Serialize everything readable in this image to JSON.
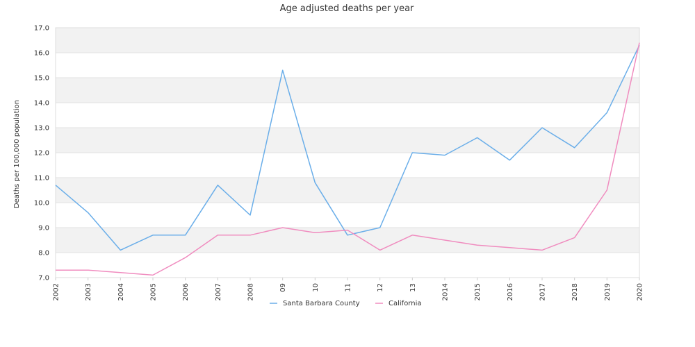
{
  "chart_data": {
    "type": "line",
    "title": "Age adjusted deaths per year",
    "xlabel": "",
    "ylabel": "Deaths per 100,000 population",
    "ylim": [
      7.0,
      17.0
    ],
    "yticks": [
      "7.0",
      "8.0",
      "9.0",
      "10.0",
      "11.0",
      "12.0",
      "13.0",
      "14.0",
      "15.0",
      "16.0",
      "17.0"
    ],
    "categories": [
      "2002",
      "2003",
      "2004",
      "2005",
      "2006",
      "2007",
      "2008",
      "09",
      "10",
      "11",
      "12",
      "13",
      "2014",
      "2015",
      "2016",
      "2017",
      "2018",
      "2019",
      "2020"
    ],
    "series": [
      {
        "name": "Santa Barbara County",
        "color": "#6aaee9",
        "values": [
          10.7,
          9.6,
          8.1,
          8.7,
          8.7,
          10.7,
          9.5,
          15.3,
          10.8,
          8.7,
          9.0,
          12.0,
          11.9,
          12.6,
          11.7,
          13.0,
          12.2,
          13.6,
          16.3
        ]
      },
      {
        "name": "California",
        "color": "#f08cbf",
        "values": [
          7.3,
          7.3,
          7.2,
          7.1,
          7.8,
          8.7,
          8.7,
          9.0,
          8.8,
          8.9,
          8.1,
          8.7,
          8.5,
          8.3,
          8.2,
          8.1,
          8.6,
          10.5,
          16.4
        ]
      }
    ],
    "grid": true,
    "band_colors": [
      "#f2f2f2",
      "#ffffff"
    ],
    "legend_position": "bottom-center"
  }
}
